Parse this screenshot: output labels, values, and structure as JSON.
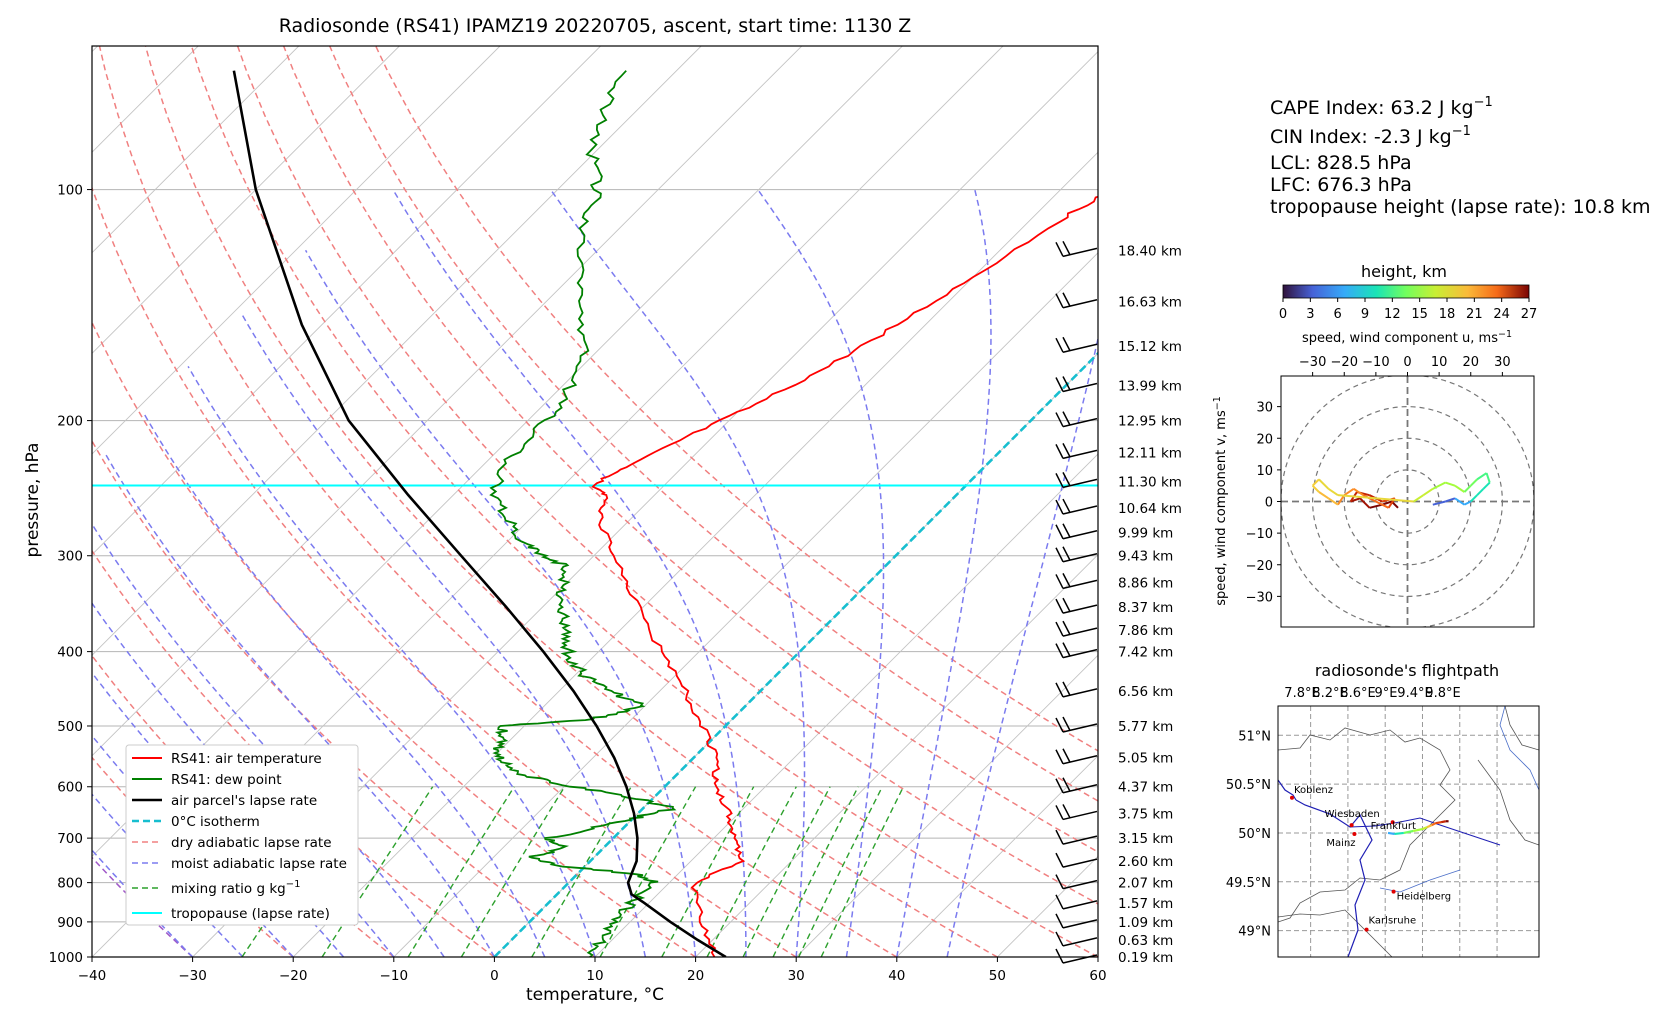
{
  "title": "Radiosonde (RS41) IPAMZ19 20220705, ascent, start time: 1130 Z",
  "skewt": {
    "xlabel": "temperature, °C",
    "ylabel": "pressure, hPa",
    "xticks": [
      "−40",
      "−30",
      "−20",
      "−10",
      "0",
      "10",
      "20",
      "30",
      "40",
      "50",
      "60"
    ],
    "yticks": [
      "100",
      "200",
      "300",
      "400",
      "500",
      "600",
      "700",
      "800",
      "900",
      "1000"
    ],
    "height_labels": [
      "18.40 km",
      "16.63 km",
      "15.12 km",
      "13.99 km",
      "12.95 km",
      "12.11 km",
      "11.30 km",
      "10.64 km",
      "9.99 km",
      "9.43 km",
      "8.86 km",
      "8.37 km",
      "7.86 km",
      "7.42 km",
      "6.56 km",
      "5.77 km",
      "5.05 km",
      "4.37 km",
      "3.75 km",
      "3.15 km",
      "2.60 km",
      "2.07 km",
      "1.57 km",
      "1.09 km",
      "0.63 km",
      "0.19 km"
    ],
    "legend": {
      "air_temp": "RS41: air temperature",
      "dew_point": "RS41: dew point",
      "parcel": "air parcel's lapse rate",
      "isotherm": "0°C isotherm",
      "dry": "dry adiabatic lapse rate",
      "moist": "moist adiabatic lapse rate",
      "mixing": "mixing ratio g kg",
      "mixing_sup": "−1",
      "tropopause": "tropopause (lapse rate)"
    },
    "colors": {
      "temperature": "#ff0000",
      "dewpoint": "#008000",
      "parcel": "#000000",
      "isotherm": "#17becf",
      "dry": "#f08080",
      "moist": "#7b7bef",
      "mixing": "#2ca02c",
      "tropopause": "#00ffff"
    }
  },
  "indices": {
    "cape": "CAPE Index: 63.2 J kg",
    "cape_sup": "−1",
    "cin": "CIN Index: -2.3 J kg",
    "cin_sup": "−1",
    "lcl": "LCL: 828.5 hPa",
    "lfc": "LFC: 676.3 hPa",
    "tropopause": "tropopause height (lapse rate): 10.8 km"
  },
  "colorbar": {
    "title": "height, km",
    "ticks": [
      "0",
      "3",
      "6",
      "9",
      "12",
      "15",
      "18",
      "21",
      "24",
      "27"
    ]
  },
  "hodograph": {
    "xlabel": "speed, wind component u, ms",
    "xlabel_sup": "−1",
    "ylabel": "speed, wind component v, ms",
    "ylabel_sup": "−1",
    "xticks": [
      "−30",
      "−20",
      "−10",
      "0",
      "10",
      "20",
      "30"
    ],
    "yticks": [
      "30",
      "20",
      "10",
      "0",
      "−10",
      "−20",
      "−30"
    ]
  },
  "flightpath": {
    "title": "radiosonde's flightpath",
    "lon_ticks": [
      "7.8°E",
      "8.2°E",
      "8.6°E",
      "9°E",
      "9.4°E",
      "9.8°E"
    ],
    "lat_ticks": [
      "51°N",
      "50.5°N",
      "50°N",
      "49.5°N",
      "49°N"
    ],
    "cities": [
      "Koblenz",
      "Wiesbaden",
      "Mainz",
      "Frankfurt",
      "Heidelberg",
      "Karlsruhe"
    ]
  },
  "chart_data": {
    "type": "skew-t log-p",
    "xlim": [
      -40,
      60
    ],
    "ylim": [
      1000,
      65
    ],
    "yscale": "log",
    "tropopause_pressure": 243,
    "indices": {
      "cape": 63.2,
      "cin": -2.3,
      "lcl": 828.5,
      "lfc": 676.3,
      "tropopause_height_km": 10.8
    },
    "height_marks": [
      {
        "p": 1000,
        "km": 0.19
      },
      {
        "p": 950,
        "km": 0.63
      },
      {
        "p": 900,
        "km": 1.09
      },
      {
        "p": 850,
        "km": 1.57
      },
      {
        "p": 800,
        "km": 2.07
      },
      {
        "p": 750,
        "km": 2.6
      },
      {
        "p": 700,
        "km": 3.15
      },
      {
        "p": 650,
        "km": 3.75
      },
      {
        "p": 600,
        "km": 4.37
      },
      {
        "p": 550,
        "km": 5.05
      },
      {
        "p": 500,
        "km": 5.77
      },
      {
        "p": 450,
        "km": 6.56
      },
      {
        "p": 400,
        "km": 7.42
      },
      {
        "p": 375,
        "km": 7.86
      },
      {
        "p": 350,
        "km": 8.37
      },
      {
        "p": 325,
        "km": 8.86
      },
      {
        "p": 300,
        "km": 9.43
      },
      {
        "p": 280,
        "km": 9.99
      },
      {
        "p": 260,
        "km": 10.64
      },
      {
        "p": 240,
        "km": 11.3
      },
      {
        "p": 220,
        "km": 12.11
      },
      {
        "p": 200,
        "km": 12.95
      },
      {
        "p": 180,
        "km": 13.99
      },
      {
        "p": 160,
        "km": 15.12
      },
      {
        "p": 140,
        "km": 16.63
      },
      {
        "p": 120,
        "km": 18.4
      }
    ],
    "temperature": {
      "p": [
        1000,
        900,
        800,
        750,
        700,
        650,
        600,
        550,
        500,
        450,
        400,
        350,
        300,
        270,
        250,
        243,
        230,
        210,
        190,
        170,
        150,
        130,
        110,
        100,
        90,
        80,
        70
      ],
      "t": [
        22,
        17,
        12.5,
        15,
        12.2,
        9,
        5.1,
        2.2,
        -2.3,
        -7.5,
        -13.8,
        -20.5,
        -27.9,
        -33,
        -34.8,
        -37.3,
        -35.4,
        -32.5,
        -28.8,
        -25.5,
        -22.8,
        -20,
        -17.1,
        -15,
        -11.2,
        -8.5,
        -6.5
      ]
    },
    "dewpoint": {
      "p": [
        1000,
        950,
        900,
        850,
        800,
        780,
        760,
        740,
        720,
        700,
        680,
        660,
        640,
        620,
        600,
        580,
        560,
        540,
        520,
        500,
        490,
        480,
        470,
        450,
        430,
        410,
        390,
        370,
        350,
        330,
        310,
        300,
        290,
        270,
        250,
        230,
        210,
        190,
        170,
        150,
        130,
        110,
        100,
        90,
        80,
        70
      ],
      "td": [
        9.5,
        9,
        8.5,
        8.2,
        8.5,
        6,
        -3,
        -6,
        -4,
        -6.5,
        -3,
        0,
        3,
        -2,
        -9,
        -15,
        -18,
        -20,
        -21,
        -22,
        -14,
        -12,
        -10.5,
        -15,
        -19,
        -22,
        -24,
        -26,
        -28,
        -30,
        -31.5,
        -35,
        -38,
        -42,
        -46,
        -48,
        -48,
        -48.5,
        -50,
        -54,
        -59,
        -64,
        -66,
        -70,
        -73,
        -75
      ]
    },
    "parcel": {
      "p": [
        1000,
        950,
        900,
        850,
        828.5,
        800,
        750,
        700,
        650,
        600,
        550,
        500,
        450,
        400,
        350,
        300,
        250,
        200,
        150,
        100,
        70
      ],
      "t": [
        23,
        18.5,
        14,
        9.5,
        7.4,
        5.9,
        4.6,
        2.4,
        -0.4,
        -3.8,
        -7.9,
        -12.8,
        -18.6,
        -25.5,
        -33.6,
        -43.2,
        -54.5,
        -67.8,
        -82,
        -100,
        -114
      ]
    },
    "hodograph": {
      "u": [
        -3,
        -5,
        -8,
        -12,
        -15,
        -18,
        -16,
        -12,
        -8,
        -4,
        -6,
        -10,
        -14,
        -17,
        -20,
        -22,
        -25,
        -28,
        -30,
        -28,
        -25,
        -22,
        2,
        5,
        8,
        12,
        15,
        18,
        20,
        22,
        25,
        26,
        24,
        22,
        20,
        18,
        15,
        12,
        8
      ],
      "v": [
        -2,
        0,
        -1,
        -2,
        1,
        0,
        3,
        2,
        0,
        1,
        -2,
        0,
        2,
        4,
        2,
        -1,
        1,
        3,
        5,
        7,
        4,
        2,
        0,
        2,
        4,
        6,
        5,
        3,
        5,
        7,
        9,
        6,
        4,
        2,
        0,
        -1,
        1,
        0,
        -1
      ]
    },
    "flight_track": {
      "lon": [
        8.63,
        8.7,
        8.8,
        8.9,
        9.0,
        9.05,
        9.1,
        9.14,
        9.2,
        9.25,
        9.28
      ],
      "lat": [
        50.0,
        49.99,
        50.0,
        50.02,
        50.04,
        50.06,
        50.08,
        50.1,
        50.11,
        50.12,
        50.12
      ]
    }
  }
}
